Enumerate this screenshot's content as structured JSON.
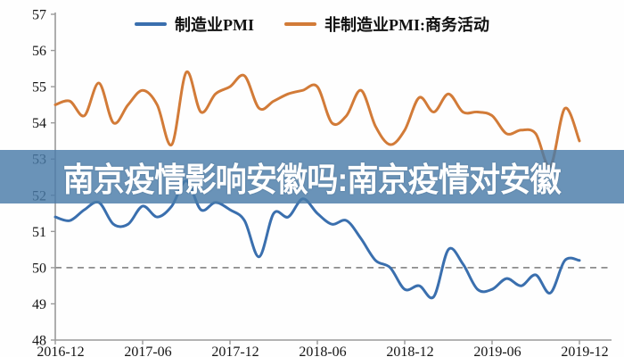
{
  "banner": {
    "text": "南京疫情影响安徽吗:南京疫情对安徽",
    "bg_color_rgba": "rgba(73,123,168,0.82)",
    "text_color": "#ffffff"
  },
  "legend": [
    {
      "label": "制造业PMI",
      "color": "#3a6fae"
    },
    {
      "label": "非制造业PMI:商务活动",
      "color": "#d27b38"
    }
  ],
  "chart_data": {
    "type": "line",
    "title": "",
    "xlabel": "",
    "ylabel": "",
    "ylim": [
      48,
      57
    ],
    "ytick_step": 1,
    "yticks": [
      48,
      49,
      50,
      51,
      52,
      53,
      54,
      55,
      56,
      57
    ],
    "x_ticklabels": [
      "2016-12",
      "2017-06",
      "2017-12",
      "2018-06",
      "2018-12",
      "2019-06",
      "2019-12"
    ],
    "x_tick_month_index": [
      0,
      6,
      12,
      18,
      24,
      30,
      36
    ],
    "x": [
      "2016-12",
      "2017-01",
      "2017-02",
      "2017-03",
      "2017-04",
      "2017-05",
      "2017-06",
      "2017-07",
      "2017-08",
      "2017-09",
      "2017-10",
      "2017-11",
      "2017-12",
      "2018-01",
      "2018-02",
      "2018-03",
      "2018-04",
      "2018-05",
      "2018-06",
      "2018-07",
      "2018-08",
      "2018-09",
      "2018-10",
      "2018-11",
      "2018-12",
      "2019-01",
      "2019-02",
      "2019-03",
      "2019-04",
      "2019-05",
      "2019-06",
      "2019-07",
      "2019-08",
      "2019-09",
      "2019-10",
      "2019-11",
      "2019-12"
    ],
    "series": [
      {
        "name": "制造业PMI",
        "color": "#3a6fae",
        "values": [
          51.4,
          51.3,
          51.6,
          51.8,
          51.2,
          51.2,
          51.7,
          51.4,
          51.7,
          52.4,
          51.6,
          51.8,
          51.6,
          51.3,
          50.3,
          51.5,
          51.4,
          51.9,
          51.5,
          51.2,
          51.3,
          50.8,
          50.2,
          50.0,
          49.4,
          49.5,
          49.2,
          50.5,
          50.1,
          49.4,
          49.4,
          49.7,
          49.5,
          49.8,
          49.3,
          50.2,
          50.2
        ]
      },
      {
        "name": "非制造业PMI:商务活动",
        "color": "#d27b38",
        "values": [
          54.5,
          54.6,
          54.2,
          55.1,
          54.0,
          54.5,
          54.9,
          54.5,
          53.4,
          55.4,
          54.3,
          54.8,
          55.0,
          55.3,
          54.4,
          54.6,
          54.8,
          54.9,
          55.0,
          54.0,
          54.2,
          54.9,
          53.9,
          53.4,
          53.8,
          54.7,
          54.3,
          54.8,
          54.3,
          54.3,
          54.2,
          53.7,
          53.8,
          53.7,
          52.8,
          54.4,
          53.5
        ]
      }
    ],
    "reference_line": {
      "y": 50,
      "style": "dashed",
      "color": "#8c8c8c"
    },
    "grid": false,
    "legend_position": "top-center",
    "axis_color": "#9a9a9a",
    "tick_label_color": "#141414"
  }
}
